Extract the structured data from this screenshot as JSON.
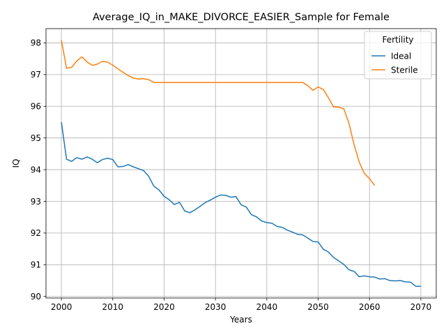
{
  "chart_data": {
    "type": "line",
    "title": "Average_IQ_in_MAKE_DIVORCE_EASIER_Sample for Female",
    "xlabel": "Years",
    "ylabel": "IQ",
    "xlim": [
      1997,
      2073
    ],
    "ylim": [
      89.95,
      98.45
    ],
    "xticks": [
      2000,
      2010,
      2020,
      2030,
      2040,
      2050,
      2060,
      2070
    ],
    "yticks": [
      90,
      91,
      92,
      93,
      94,
      95,
      96,
      97,
      98
    ],
    "grid": true,
    "legend": {
      "title": "Fertility",
      "position": "top-right"
    },
    "series": [
      {
        "name": "Ideal",
        "color": "#1f77b4",
        "x": [
          2000,
          2001,
          2002,
          2003,
          2004,
          2005,
          2006,
          2007,
          2008,
          2009,
          2010,
          2011,
          2012,
          2013,
          2014,
          2015,
          2016,
          2017,
          2018,
          2019,
          2020,
          2021,
          2022,
          2023,
          2024,
          2025,
          2026,
          2027,
          2028,
          2029,
          2030,
          2031,
          2032,
          2033,
          2034,
          2035,
          2036,
          2037,
          2038,
          2039,
          2040,
          2041,
          2042,
          2043,
          2044,
          2045,
          2046,
          2047,
          2048,
          2049,
          2050,
          2051,
          2052,
          2053,
          2054,
          2055,
          2056,
          2057,
          2058,
          2059,
          2060,
          2061,
          2062,
          2063,
          2064,
          2065,
          2066,
          2067,
          2068,
          2069,
          2070
        ],
        "y": [
          95.5,
          94.33,
          94.26,
          94.38,
          94.33,
          94.4,
          94.33,
          94.22,
          94.32,
          94.36,
          94.32,
          94.09,
          94.1,
          94.16,
          94.09,
          94.03,
          93.97,
          93.79,
          93.48,
          93.36,
          93.16,
          93.05,
          92.9,
          92.97,
          92.7,
          92.64,
          92.73,
          92.84,
          92.96,
          93.04,
          93.13,
          93.2,
          93.19,
          93.13,
          93.15,
          92.89,
          92.82,
          92.58,
          92.51,
          92.38,
          92.33,
          92.31,
          92.21,
          92.18,
          92.09,
          92.03,
          91.96,
          91.94,
          91.84,
          91.73,
          91.72,
          91.49,
          91.4,
          91.23,
          91.12,
          91.01,
          90.84,
          90.79,
          90.62,
          90.65,
          90.62,
          90.61,
          90.55,
          90.56,
          90.5,
          90.49,
          90.5,
          90.46,
          90.45,
          90.32,
          90.32
        ]
      },
      {
        "name": "Sterile",
        "color": "#ff7f0e",
        "x": [
          2000,
          2001,
          2002,
          2003,
          2004,
          2005,
          2006,
          2007,
          2008,
          2009,
          2010,
          2011,
          2012,
          2013,
          2014,
          2015,
          2016,
          2017,
          2018,
          2019,
          2020,
          2021,
          2022,
          2023,
          2024,
          2025,
          2026,
          2027,
          2028,
          2029,
          2030,
          2031,
          2032,
          2033,
          2034,
          2035,
          2036,
          2037,
          2038,
          2039,
          2040,
          2041,
          2042,
          2043,
          2044,
          2045,
          2046,
          2047,
          2048,
          2049,
          2050,
          2051,
          2052,
          2053,
          2054,
          2055,
          2056,
          2057,
          2058,
          2059,
          2060,
          2061
        ],
        "y": [
          98.08,
          97.2,
          97.23,
          97.43,
          97.56,
          97.4,
          97.29,
          97.33,
          97.42,
          97.39,
          97.3,
          97.18,
          97.07,
          96.97,
          96.89,
          96.86,
          96.87,
          96.84,
          96.75,
          96.75,
          96.75,
          96.75,
          96.75,
          96.75,
          96.75,
          96.75,
          96.75,
          96.75,
          96.75,
          96.75,
          96.75,
          96.75,
          96.75,
          96.75,
          96.75,
          96.75,
          96.75,
          96.75,
          96.75,
          96.75,
          96.75,
          96.75,
          96.75,
          96.75,
          96.75,
          96.75,
          96.75,
          96.75,
          96.65,
          96.5,
          96.61,
          96.53,
          96.27,
          95.98,
          95.97,
          95.92,
          95.46,
          94.79,
          94.24,
          93.88,
          93.72,
          93.5
        ]
      }
    ]
  }
}
